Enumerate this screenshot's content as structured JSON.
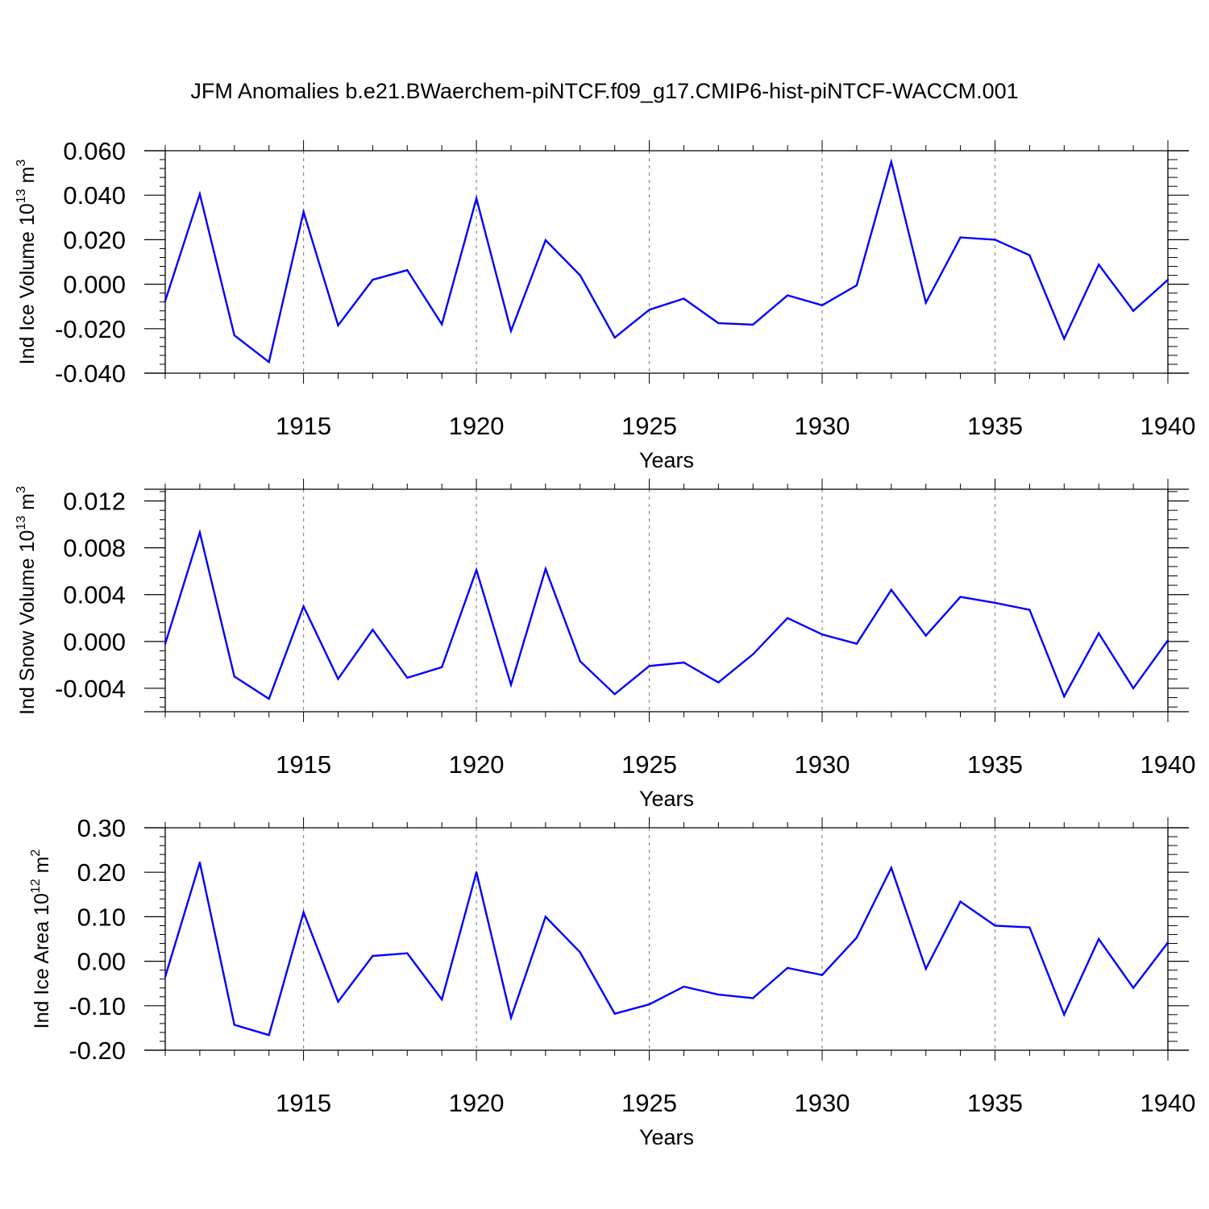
{
  "figure": {
    "title": "JFM Anomalies b.e21.BWaerchem-piNTCF.f09_g17.CMIP6-hist-piNTCF-WACCM.001"
  },
  "colors": {
    "line": "#0000ff",
    "axis": "#000000",
    "grid": "#888888",
    "background": "#ffffff"
  },
  "chart_data": [
    {
      "type": "line",
      "title": "",
      "xlabel": "Years",
      "ylabel": "Ind Ice Volume 10",
      "ylabel_exp": "13",
      "ylabel_unit": " m",
      "ylabel_unit_exp": "3",
      "xlim": [
        1911,
        1940
      ],
      "ylim": [
        -0.04,
        0.06
      ],
      "yticks": [
        -0.04,
        -0.02,
        0.0,
        0.02,
        0.04,
        0.06
      ],
      "yticklabels": [
        "-0.040",
        "-0.020",
        "0.000",
        "0.020",
        "0.040",
        "0.060"
      ],
      "xticks": [
        1915,
        1920,
        1925,
        1930,
        1935,
        1940
      ],
      "xticklabels": [
        "1915",
        "1920",
        "1925",
        "1930",
        "1935",
        "1940"
      ],
      "grid": "vertical dashed at major x ticks",
      "x": [
        1911,
        1912,
        1913,
        1914,
        1915,
        1916,
        1917,
        1918,
        1919,
        1920,
        1921,
        1922,
        1923,
        1924,
        1925,
        1926,
        1927,
        1928,
        1929,
        1930,
        1931,
        1932,
        1933,
        1934,
        1935,
        1936,
        1937,
        1938,
        1939,
        1940
      ],
      "values": [
        -0.0075,
        0.0405,
        -0.023,
        -0.035,
        0.0325,
        -0.0185,
        0.002,
        0.0063,
        -0.018,
        0.0385,
        -0.021,
        0.0198,
        0.004,
        -0.024,
        -0.0115,
        -0.0065,
        -0.0175,
        -0.0182,
        -0.005,
        -0.0095,
        -0.0005,
        0.055,
        -0.0083,
        0.021,
        0.02,
        0.013,
        -0.0245,
        0.0088,
        -0.012,
        0.002
      ]
    },
    {
      "type": "line",
      "title": "",
      "xlabel": "Years",
      "ylabel": "Ind Snow Volume 10",
      "ylabel_exp": "13",
      "ylabel_unit": " m",
      "ylabel_unit_exp": "3",
      "xlim": [
        1911,
        1940
      ],
      "ylim": [
        -0.006,
        0.013
      ],
      "yticks": [
        -0.004,
        0.0,
        0.004,
        0.008,
        0.012
      ],
      "yticklabels": [
        "-0.004",
        "0.000",
        "0.004",
        "0.008",
        "0.012"
      ],
      "xticks": [
        1915,
        1920,
        1925,
        1930,
        1935,
        1940
      ],
      "xticklabels": [
        "1915",
        "1920",
        "1925",
        "1930",
        "1935",
        "1940"
      ],
      "grid": "vertical dashed at major x ticks",
      "x": [
        1911,
        1912,
        1913,
        1914,
        1915,
        1916,
        1917,
        1918,
        1919,
        1920,
        1921,
        1922,
        1923,
        1924,
        1925,
        1926,
        1927,
        1928,
        1929,
        1930,
        1931,
        1932,
        1933,
        1934,
        1935,
        1936,
        1937,
        1938,
        1939,
        1940
      ],
      "values": [
        -0.0002,
        0.0093,
        -0.003,
        -0.0049,
        0.003,
        -0.0032,
        0.001,
        -0.0031,
        -0.0022,
        0.0061,
        -0.0037,
        0.0062,
        -0.0017,
        -0.0045,
        -0.0021,
        -0.0018,
        -0.0035,
        -0.0011,
        0.002,
        0.0006,
        -0.0002,
        0.0044,
        0.0005,
        0.0038,
        0.0033,
        0.0027,
        -0.0047,
        0.0007,
        -0.004,
        0.0001
      ]
    },
    {
      "type": "line",
      "title": "",
      "xlabel": "Years",
      "ylabel": "Ind Ice Area 10",
      "ylabel_exp": "12",
      "ylabel_unit": " m",
      "ylabel_unit_exp": "2",
      "xlim": [
        1911,
        1940
      ],
      "ylim": [
        -0.2,
        0.3
      ],
      "yticks": [
        -0.2,
        -0.1,
        0.0,
        0.1,
        0.2,
        0.3
      ],
      "yticklabels": [
        "-0.20",
        "-0.10",
        "0.00",
        "0.10",
        "0.20",
        "0.30"
      ],
      "xticks": [
        1915,
        1920,
        1925,
        1930,
        1935,
        1940
      ],
      "xticklabels": [
        "1915",
        "1920",
        "1925",
        "1930",
        "1935",
        "1940"
      ],
      "grid": "vertical dashed at major x ticks",
      "x": [
        1911,
        1912,
        1913,
        1914,
        1915,
        1916,
        1917,
        1918,
        1919,
        1920,
        1921,
        1922,
        1923,
        1924,
        1925,
        1926,
        1927,
        1928,
        1929,
        1930,
        1931,
        1932,
        1933,
        1934,
        1935,
        1936,
        1937,
        1938,
        1939,
        1940
      ],
      "values": [
        -0.035,
        0.222,
        -0.143,
        -0.166,
        0.11,
        -0.091,
        0.012,
        0.018,
        -0.086,
        0.2,
        -0.127,
        0.1,
        0.02,
        -0.118,
        -0.097,
        -0.057,
        -0.075,
        -0.083,
        -0.015,
        -0.031,
        0.053,
        0.21,
        -0.017,
        0.134,
        0.08,
        0.076,
        -0.12,
        0.05,
        -0.06,
        0.042
      ]
    }
  ]
}
